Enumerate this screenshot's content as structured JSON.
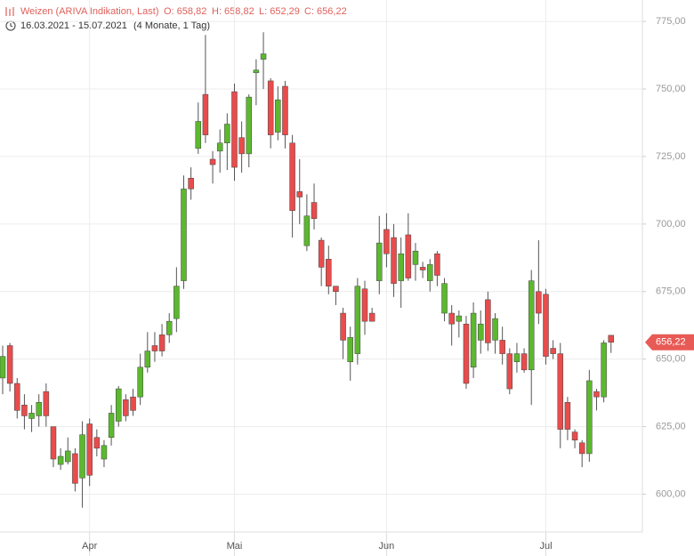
{
  "header": {
    "instrument": "Weizen (ARIVA Indikation, Last)",
    "ohlc": [
      "O: 658,82",
      "H: 658,82",
      "L: 652,29",
      "C: 656,22"
    ],
    "range": "16.03.2021 - 15.07.2021",
    "duration": "(4 Monate, 1 Tag)"
  },
  "chart_data": {
    "type": "candlestick",
    "categories": [
      null,
      null,
      null,
      null,
      null,
      null,
      null,
      null,
      null,
      null,
      null,
      null,
      "Apr",
      null,
      null,
      null,
      null,
      null,
      null,
      null,
      null,
      null,
      null,
      null,
      null,
      null,
      null,
      null,
      null,
      null,
      null,
      null,
      "Mai",
      null,
      null,
      null,
      null,
      null,
      null,
      null,
      null,
      null,
      null,
      null,
      null,
      null,
      null,
      null,
      null,
      null,
      null,
      null,
      null,
      "Jun",
      null,
      null,
      null,
      null,
      null,
      null,
      null,
      null,
      null,
      null,
      null,
      null,
      null,
      null,
      null,
      null,
      null,
      null,
      null,
      null,
      null,
      "Jul",
      null,
      null,
      null,
      null,
      null,
      null,
      null,
      null,
      null
    ],
    "open": [
      643,
      655,
      641,
      633,
      628,
      629,
      638,
      625,
      611,
      612,
      615,
      606,
      626,
      621,
      613,
      621,
      627,
      635,
      636,
      636,
      647,
      655,
      659,
      659,
      665,
      679,
      717,
      728,
      748,
      724,
      727,
      730,
      749,
      732,
      726,
      756,
      761,
      753,
      734,
      751,
      730,
      712,
      692,
      708,
      694,
      687,
      677,
      667,
      649,
      652,
      676,
      667,
      679,
      698,
      695,
      679,
      696,
      685,
      684,
      679,
      689,
      667,
      667,
      664,
      663,
      647,
      657,
      672,
      657,
      657,
      652,
      649,
      652,
      646,
      675,
      674,
      654,
      652,
      634,
      623,
      619,
      615,
      638,
      636,
      658.82
    ],
    "high": [
      655,
      656,
      643,
      637,
      633,
      637,
      641,
      625,
      617,
      621,
      617,
      627,
      628,
      624,
      620,
      633,
      640,
      637,
      639,
      652,
      660,
      660,
      663,
      667,
      684,
      718,
      721,
      745,
      770,
      727,
      735,
      741,
      752,
      738,
      748,
      761,
      771,
      754,
      751,
      753,
      733,
      724,
      711,
      715,
      695,
      692,
      677,
      669,
      662,
      680,
      679,
      669,
      703,
      704,
      700,
      695,
      704,
      693,
      686,
      687,
      690,
      680,
      670,
      668,
      666,
      671,
      668,
      675,
      667,
      662,
      654,
      656,
      654,
      683,
      694,
      676,
      657,
      656,
      636,
      624,
      620,
      646,
      639,
      657,
      658.82
    ],
    "low": [
      637,
      638,
      628,
      624,
      623,
      625,
      625,
      610,
      609,
      611,
      601,
      595,
      603,
      614,
      610,
      618,
      625,
      627,
      629,
      633,
      645,
      649,
      651,
      656,
      660,
      676,
      709,
      726,
      730,
      715,
      719,
      720,
      716,
      719,
      721,
      744,
      750,
      728,
      731,
      728,
      695,
      700,
      690,
      698,
      677,
      674,
      670,
      650,
      642,
      648,
      659,
      664,
      674,
      684,
      673,
      669,
      679,
      679,
      680,
      675,
      677,
      664,
      655,
      658,
      639,
      643,
      652,
      653,
      652,
      648,
      637,
      645,
      645,
      633,
      663,
      648,
      650,
      617,
      620,
      617,
      610,
      612,
      631,
      634,
      652.29
    ],
    "close": [
      651,
      641,
      631,
      629,
      630,
      634,
      629,
      613,
      614,
      616,
      604,
      622,
      607,
      617,
      618,
      630,
      639,
      629,
      631,
      647,
      653,
      653,
      653,
      664,
      677,
      713,
      713,
      738,
      733,
      722,
      730,
      737,
      721,
      726,
      747,
      757,
      763,
      733,
      746,
      733,
      705,
      710,
      703,
      702,
      684,
      677,
      675,
      657,
      658,
      677,
      664,
      664,
      693,
      689,
      678,
      689,
      680,
      690,
      683,
      685,
      681,
      678,
      663,
      666,
      641,
      667,
      663,
      656,
      665,
      652,
      639,
      652,
      646,
      679,
      667,
      651,
      652,
      624,
      624,
      620,
      615,
      642,
      636,
      656,
      656.22
    ],
    "up_color": "#5cb82e",
    "down_color": "#e84c4c",
    "ylim": [
      586,
      778
    ],
    "yticks": [
      {
        "value": 600,
        "label": "600,00"
      },
      {
        "value": 625,
        "label": "625,00"
      },
      {
        "value": 650,
        "label": "650,00"
      },
      {
        "value": 675,
        "label": "675,00"
      },
      {
        "value": 700,
        "label": "700,00"
      },
      {
        "value": 725,
        "label": "725,00"
      },
      {
        "value": 750,
        "label": "750,00"
      },
      {
        "value": 775,
        "label": "775,00"
      }
    ],
    "last_price": {
      "value": 656.22,
      "label": "656,22"
    },
    "grid": true
  }
}
